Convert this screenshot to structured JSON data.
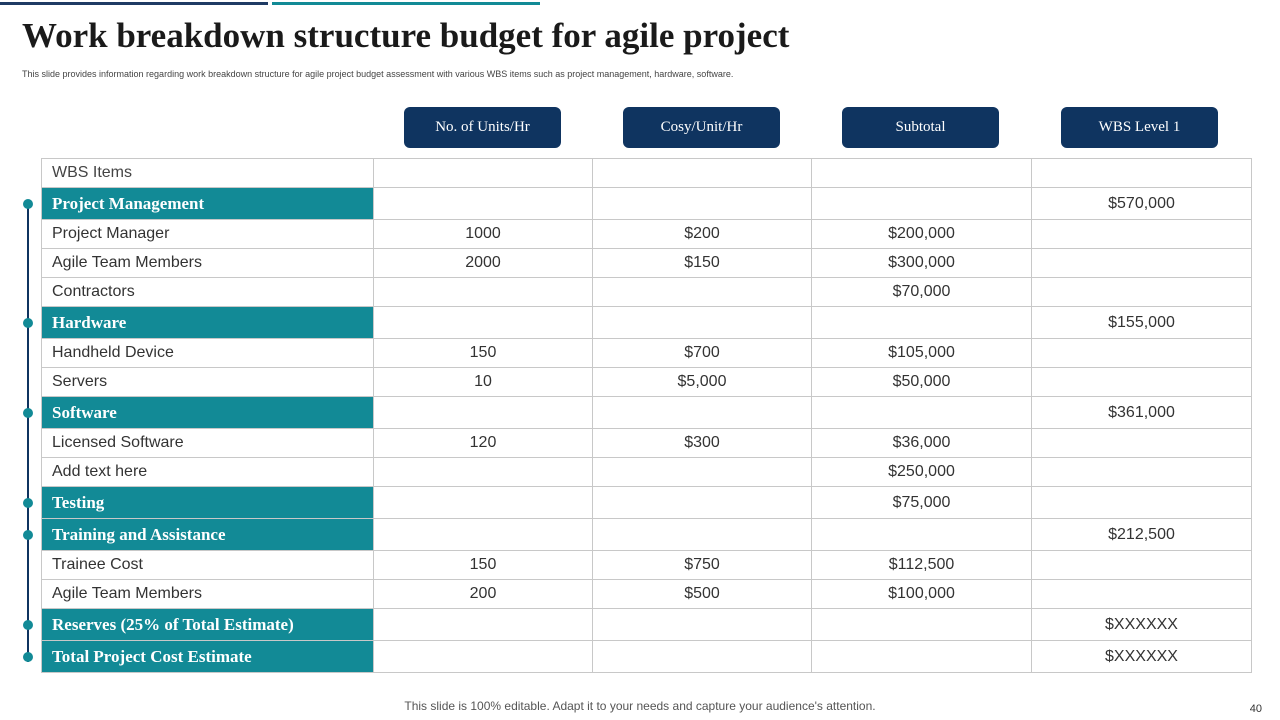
{
  "title": "Work breakdown structure budget for agile project",
  "subtitle": "This slide provides information regarding work breakdown structure for agile project budget assessment with various WBS items such as project management, hardware, software.",
  "columns": [
    "No. of Units/Hr",
    "Cosy/Unit/Hr",
    "Subtotal",
    "WBS Level 1"
  ],
  "table": {
    "header_label": "WBS Items",
    "rows": [
      {
        "type": "section",
        "label": "Project Management",
        "units": "",
        "cost": "",
        "subtotal": "",
        "level1": "$570,000"
      },
      {
        "type": "item",
        "label": "Project Manager",
        "units": "1000",
        "cost": "$200",
        "subtotal": "$200,000",
        "level1": ""
      },
      {
        "type": "item",
        "label": "Agile Team Members",
        "units": "2000",
        "cost": "$150",
        "subtotal": "$300,000",
        "level1": ""
      },
      {
        "type": "item",
        "label": "Contractors",
        "units": "",
        "cost": "",
        "subtotal": "$70,000",
        "level1": ""
      },
      {
        "type": "section",
        "label": "Hardware",
        "units": "",
        "cost": "",
        "subtotal": "",
        "level1": "$155,000"
      },
      {
        "type": "item",
        "label": "Handheld Device",
        "units": "150",
        "cost": "$700",
        "subtotal": "$105,000",
        "level1": ""
      },
      {
        "type": "item",
        "label": "Servers",
        "units": "10",
        "cost": "$5,000",
        "subtotal": "$50,000",
        "level1": ""
      },
      {
        "type": "section",
        "label": "Software",
        "units": "",
        "cost": "",
        "subtotal": "",
        "level1": "$361,000"
      },
      {
        "type": "item",
        "label": "Licensed Software",
        "units": "120",
        "cost": "$300",
        "subtotal": "$36,000",
        "level1": ""
      },
      {
        "type": "item",
        "label": "Add text here",
        "units": "",
        "cost": "",
        "subtotal": "$250,000",
        "level1": ""
      },
      {
        "type": "section",
        "label": "Testing",
        "units": "",
        "cost": "",
        "subtotal": "$75,000",
        "level1": ""
      },
      {
        "type": "section",
        "label": "Training and Assistance",
        "units": "",
        "cost": "",
        "subtotal": "",
        "level1": "$212,500"
      },
      {
        "type": "item",
        "label": "Trainee Cost",
        "units": "150",
        "cost": "$750",
        "subtotal": "$112,500",
        "level1": ""
      },
      {
        "type": "item",
        "label": "Agile Team Members",
        "units": "200",
        "cost": "$500",
        "subtotal": "$100,000",
        "level1": ""
      },
      {
        "type": "section",
        "label": "Reserves (25% of Total Estimate)",
        "units": "",
        "cost": "",
        "subtotal": "",
        "level1": "$XXXXXX"
      },
      {
        "type": "section",
        "label": "Total Project Cost Estimate",
        "units": "",
        "cost": "",
        "subtotal": "",
        "level1": "$XXXXXX"
      }
    ]
  },
  "footer": "This slide is 100% editable. Adapt it to your needs and capture your audience's attention.",
  "page_number": "40",
  "colors": {
    "navy": "#0f3460",
    "teal": "#128a96"
  }
}
